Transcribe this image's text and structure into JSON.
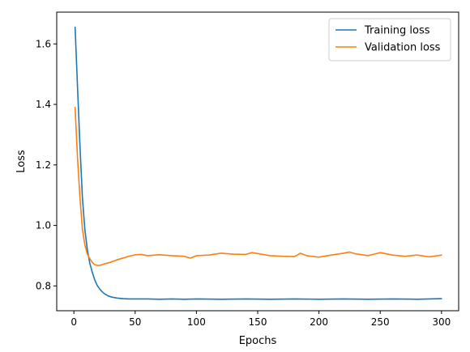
{
  "chart_data": {
    "type": "line",
    "xlabel": "Epochs",
    "ylabel": "Loss",
    "xlim": [
      -14,
      314
    ],
    "ylim": [
      0.718,
      1.705
    ],
    "xticks": [
      0,
      50,
      100,
      150,
      200,
      250,
      300
    ],
    "yticks": [
      0.8,
      1.0,
      1.2,
      1.4,
      1.6
    ],
    "ytick_labels": [
      "0.8",
      "1.0",
      "1.2",
      "1.4",
      "1.6"
    ],
    "grid": false,
    "legend_position": "top-right",
    "series": [
      {
        "name": "Training loss",
        "color": "#1f77b4",
        "x": [
          1,
          3,
          5,
          7,
          9,
          11,
          13,
          15,
          17,
          19,
          21,
          23,
          25,
          28,
          31,
          35,
          40,
          45,
          50,
          60,
          70,
          80,
          90,
          100,
          120,
          140,
          160,
          180,
          200,
          220,
          240,
          260,
          280,
          300
        ],
        "y": [
          1.655,
          1.455,
          1.26,
          1.09,
          0.985,
          0.92,
          0.875,
          0.845,
          0.82,
          0.802,
          0.79,
          0.781,
          0.774,
          0.767,
          0.763,
          0.76,
          0.758,
          0.757,
          0.757,
          0.757,
          0.756,
          0.757,
          0.756,
          0.757,
          0.756,
          0.757,
          0.756,
          0.757,
          0.756,
          0.757,
          0.756,
          0.757,
          0.756,
          0.758
        ]
      },
      {
        "name": "Validation loss",
        "color": "#ff7f0e",
        "x": [
          1,
          3,
          5,
          7,
          9,
          11,
          13,
          15,
          17,
          19,
          21,
          23,
          25,
          28,
          31,
          35,
          40,
          45,
          50,
          55,
          60,
          70,
          80,
          90,
          95,
          100,
          110,
          120,
          130,
          140,
          145,
          150,
          160,
          170,
          180,
          185,
          190,
          200,
          210,
          220,
          225,
          230,
          240,
          250,
          260,
          270,
          280,
          290,
          300
        ],
        "y": [
          1.39,
          1.22,
          1.09,
          0.985,
          0.935,
          0.905,
          0.89,
          0.878,
          0.87,
          0.868,
          0.868,
          0.87,
          0.873,
          0.876,
          0.88,
          0.886,
          0.892,
          0.898,
          0.903,
          0.904,
          0.9,
          0.903,
          0.9,
          0.898,
          0.892,
          0.9,
          0.902,
          0.908,
          0.905,
          0.904,
          0.91,
          0.907,
          0.9,
          0.898,
          0.897,
          0.908,
          0.9,
          0.895,
          0.902,
          0.908,
          0.912,
          0.906,
          0.9,
          0.91,
          0.902,
          0.898,
          0.902,
          0.896,
          0.902
        ]
      }
    ]
  }
}
